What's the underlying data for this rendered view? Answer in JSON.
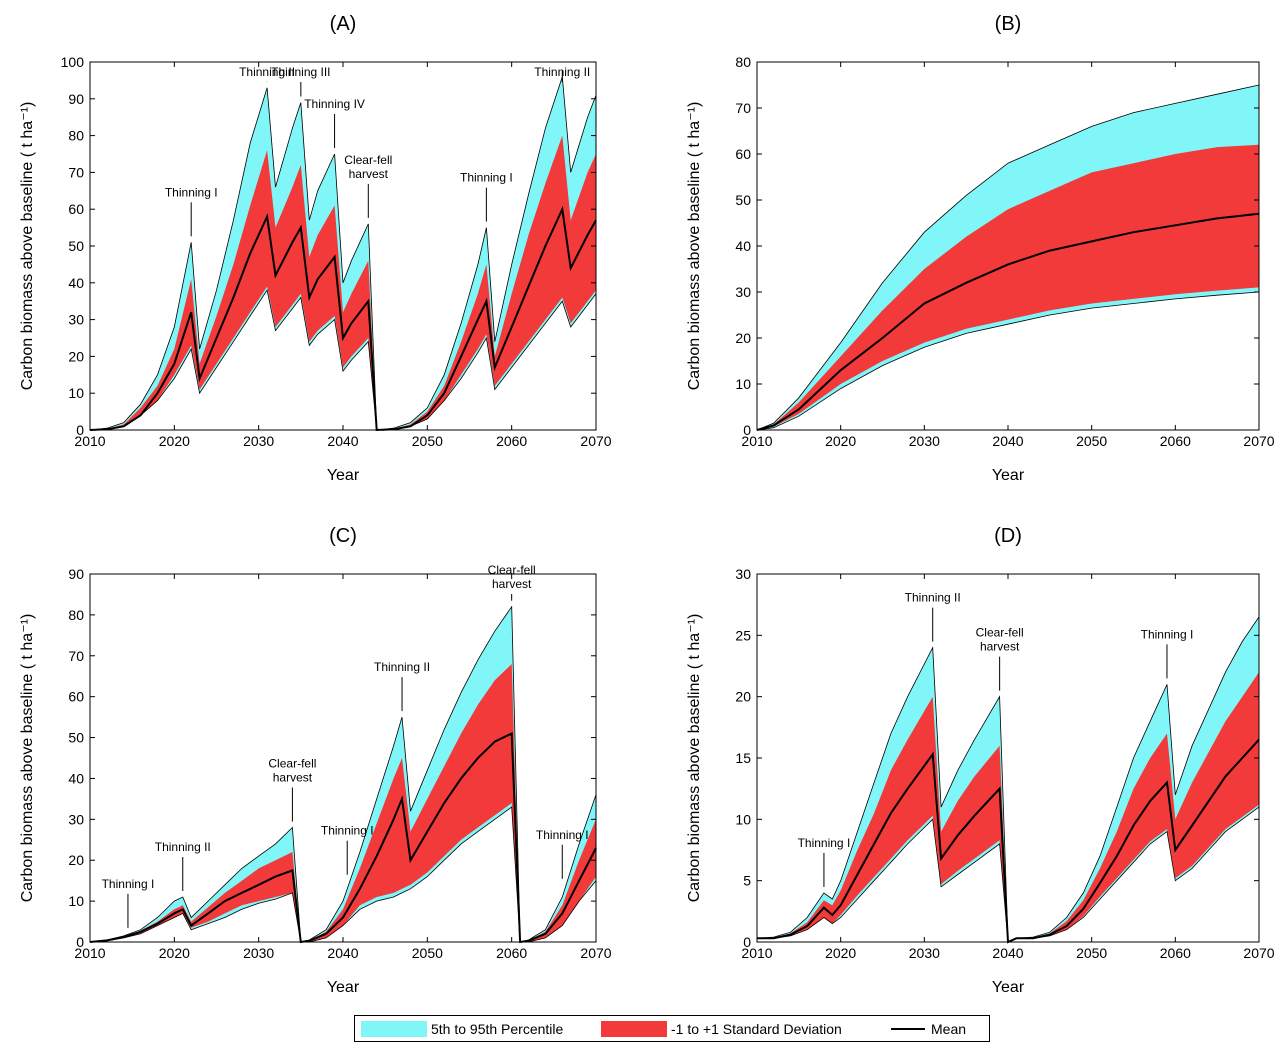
{
  "colors": {
    "percentile": "#80f6f8",
    "stddev": "#f23a3a",
    "mean": "#000000"
  },
  "legend": {
    "percentile_label": "5th to 95th Percentile",
    "stddev_label": "-1 to +1 Standard Deviation",
    "mean_label": "Mean"
  },
  "chart_data": [
    {
      "type": "area",
      "title": "(A)",
      "xlabel": "Year",
      "ylabel": "Carbon biomass above baseline ( t ha⁻¹)",
      "xlim": [
        2010,
        2070
      ],
      "ylim": [
        0,
        100
      ],
      "xticks": [
        2010,
        2020,
        2030,
        2040,
        2050,
        2060,
        2070
      ],
      "yticks": [
        0,
        10,
        20,
        30,
        40,
        50,
        60,
        70,
        80,
        90,
        100
      ],
      "x": [
        2010,
        2012,
        2014,
        2016,
        2018,
        2020,
        2022,
        2023,
        2025,
        2027,
        2029,
        2031,
        2032,
        2034,
        2035,
        2036,
        2037,
        2039,
        2040,
        2041,
        2043,
        2044,
        2046,
        2048,
        2050,
        2052,
        2054,
        2056,
        2057,
        2058,
        2060,
        2062,
        2064,
        2066,
        2067,
        2069,
        2070
      ],
      "series": [
        {
          "name": "5th to 95th Percentile",
          "lower": [
            0,
            0,
            1,
            4,
            8,
            14,
            22,
            10,
            17,
            24,
            31,
            38,
            27,
            33,
            36,
            23,
            26,
            30,
            16,
            19,
            24,
            0,
            0,
            1,
            3,
            8,
            14,
            21,
            25,
            11,
            17,
            23,
            29,
            35,
            28,
            34,
            37
          ],
          "upper": [
            0,
            0.5,
            2,
            7,
            15,
            28,
            51,
            22,
            38,
            57,
            78,
            93,
            66,
            82,
            89,
            57,
            65,
            75,
            40,
            46,
            56,
            0,
            0.5,
            2,
            6,
            15,
            29,
            45,
            55,
            24,
            45,
            64,
            82,
            96,
            70,
            85,
            91
          ]
        },
        {
          "name": "-1 to +1 Standard Deviation",
          "lower": [
            0,
            0,
            1,
            4,
            8,
            15,
            23,
            11,
            18,
            25,
            32,
            39,
            28,
            34,
            37,
            24,
            27,
            31,
            17,
            20,
            25,
            0,
            0,
            1,
            3,
            8,
            15,
            22,
            26,
            12,
            18,
            24,
            30,
            36,
            29,
            35,
            38
          ],
          "upper": [
            0,
            0.3,
            1.5,
            6,
            12,
            22,
            41,
            18,
            31,
            45,
            61,
            76,
            55,
            66,
            72,
            47,
            53,
            61,
            32,
            37,
            46,
            0,
            0.3,
            1.5,
            5,
            12,
            24,
            37,
            45,
            20,
            37,
            53,
            67,
            80,
            57,
            70,
            75
          ]
        },
        {
          "name": "Mean",
          "values": [
            0,
            0.2,
            1,
            4,
            10,
            18,
            32,
            14,
            25,
            36,
            48,
            58,
            42,
            51,
            55,
            36,
            41,
            47,
            25,
            29,
            35,
            0,
            0.2,
            1,
            4,
            10,
            20,
            30,
            35,
            17,
            28,
            39,
            50,
            60,
            44,
            53,
            57
          ]
        }
      ],
      "annotations": [
        {
          "label": "Thinning I",
          "x": 2022,
          "y": 51
        },
        {
          "label": "Thinning II",
          "x": 2031,
          "y": 93
        },
        {
          "label": "Thinning III",
          "x": 2035,
          "y": 89
        },
        {
          "label": "Thinning IV",
          "x": 2039,
          "y": 75
        },
        {
          "label": "Clear-fell harvest",
          "x": 2043,
          "y": 56
        },
        {
          "label": "Thinning I",
          "x": 2057,
          "y": 55
        },
        {
          "label": "Thinning II",
          "x": 2066,
          "y": 96
        }
      ]
    },
    {
      "type": "area",
      "title": "(B)",
      "xlabel": "Year",
      "ylabel": "Carbon biomass above baseline ( t ha⁻¹)",
      "xlim": [
        2010,
        2070
      ],
      "ylim": [
        0,
        80
      ],
      "xticks": [
        2010,
        2020,
        2030,
        2040,
        2050,
        2060,
        2070
      ],
      "yticks": [
        0,
        10,
        20,
        30,
        40,
        50,
        60,
        70,
        80
      ],
      "x": [
        2010,
        2012,
        2015,
        2020,
        2025,
        2030,
        2035,
        2040,
        2045,
        2050,
        2055,
        2060,
        2065,
        2070
      ],
      "series": [
        {
          "name": "5th to 95th Percentile",
          "lower": [
            0,
            0.5,
            3,
            9,
            14,
            18,
            21,
            23,
            25,
            26.5,
            27.5,
            28.5,
            29.3,
            30
          ],
          "upper": [
            0,
            1.5,
            7,
            19,
            32,
            43,
            51,
            58,
            62,
            66,
            69,
            71,
            73,
            75
          ]
        },
        {
          "name": "-1 to +1 Standard Deviation",
          "lower": [
            0,
            0.7,
            3.5,
            10,
            15,
            19,
            22,
            24,
            26,
            27.5,
            28.5,
            29.5,
            30.3,
            31
          ],
          "upper": [
            0,
            1.2,
            6,
            16,
            26,
            35,
            42,
            48,
            52,
            56,
            58,
            60,
            61.5,
            62
          ]
        },
        {
          "name": "Mean",
          "values": [
            0,
            1,
            4.5,
            13,
            20,
            27.5,
            32,
            36,
            39,
            41,
            43,
            44.5,
            46,
            47
          ]
        }
      ],
      "annotations": []
    },
    {
      "type": "area",
      "title": "(C)",
      "xlabel": "Year",
      "ylabel": "Carbon biomass above baseline ( t ha⁻¹)",
      "xlim": [
        2010,
        2070
      ],
      "ylim": [
        0,
        90
      ],
      "xticks": [
        2010,
        2020,
        2030,
        2040,
        2050,
        2060,
        2070
      ],
      "yticks": [
        0,
        10,
        20,
        30,
        40,
        50,
        60,
        70,
        80,
        90
      ],
      "x": [
        2010,
        2012,
        2014,
        2016,
        2018,
        2020,
        2021,
        2022,
        2024,
        2026,
        2028,
        2030,
        2032,
        2034,
        2035,
        2036,
        2038,
        2040,
        2042,
        2044,
        2046,
        2047,
        2048,
        2050,
        2052,
        2054,
        2056,
        2058,
        2060,
        2061,
        2062,
        2064,
        2066,
        2068,
        2070
      ],
      "series": [
        {
          "name": "5th to 95th Percentile",
          "lower": [
            0,
            0.3,
            1,
            2,
            4,
            6,
            7,
            3,
            4.5,
            6,
            8,
            9.5,
            10.5,
            12,
            0,
            0,
            1,
            4,
            8,
            10,
            11,
            12,
            13,
            16,
            20,
            24,
            27,
            30,
            33,
            0,
            0,
            1,
            4,
            10,
            15
          ],
          "upper": [
            0,
            0.5,
            1.5,
            3,
            6,
            10,
            11,
            6,
            10,
            14,
            18,
            21,
            24,
            28,
            0,
            0.5,
            3,
            10,
            22,
            35,
            48,
            55,
            32,
            42,
            52,
            61,
            69,
            76,
            82,
            0,
            0.5,
            3,
            11,
            24,
            36
          ]
        },
        {
          "name": "-1 to +1 Standard Deviation",
          "lower": [
            0,
            0.3,
            1,
            2,
            4,
            6,
            7,
            3.5,
            5,
            7,
            9,
            10,
            11,
            12,
            0,
            0,
            1,
            4,
            9,
            11,
            12,
            13,
            14,
            17,
            21,
            25,
            28,
            31,
            34,
            0,
            0,
            1,
            4,
            10,
            16
          ],
          "upper": [
            0,
            0.5,
            1.3,
            2.8,
            5,
            8,
            9,
            5,
            8.5,
            12,
            15,
            18,
            20,
            22,
            0,
            0.4,
            2.5,
            8,
            18,
            29,
            40,
            45,
            27,
            35,
            43,
            51,
            58,
            64,
            68,
            0,
            0.4,
            2.5,
            9,
            20,
            30
          ]
        },
        {
          "name": "Mean",
          "values": [
            0,
            0.4,
            1.2,
            2.5,
            4.5,
            7,
            8,
            4,
            7,
            10,
            12,
            14,
            16,
            17.5,
            0,
            0.3,
            2,
            6,
            13,
            21,
            30,
            35,
            20,
            27,
            34,
            40,
            45,
            49,
            51,
            0,
            0.3,
            2,
            7,
            15,
            23
          ]
        }
      ],
      "annotations": [
        {
          "label": "Thinning I",
          "x": 2014.5,
          "y": 2
        },
        {
          "label": "Thinning II",
          "x": 2021,
          "y": 11
        },
        {
          "label": "Clear-fell harvest",
          "x": 2034,
          "y": 28
        },
        {
          "label": "Thinning I",
          "x": 2040.5,
          "y": 15
        },
        {
          "label": "Thinning II",
          "x": 2047,
          "y": 55
        },
        {
          "label": "Clear-fell harvest",
          "x": 2060,
          "y": 82
        },
        {
          "label": "Thinning I",
          "x": 2066,
          "y": 14
        }
      ]
    },
    {
      "type": "area",
      "title": "(D)",
      "xlabel": "Year",
      "ylabel": "Carbon biomass above baseline ( t ha⁻¹)",
      "xlim": [
        2010,
        2070
      ],
      "ylim": [
        0,
        30
      ],
      "xticks": [
        2010,
        2020,
        2030,
        2040,
        2050,
        2060,
        2070
      ],
      "yticks": [
        0,
        5,
        10,
        15,
        20,
        25,
        30
      ],
      "x": [
        2010,
        2012,
        2014,
        2016,
        2018,
        2019,
        2020,
        2022,
        2024,
        2026,
        2028,
        2031,
        2032,
        2034,
        2036,
        2039,
        2040,
        2041,
        2043,
        2045,
        2047,
        2049,
        2051,
        2053,
        2055,
        2057,
        2059,
        2060,
        2062,
        2064,
        2066,
        2068,
        2070
      ],
      "series": [
        {
          "name": "5th to 95th Percentile",
          "lower": [
            0.3,
            0.3,
            0.5,
            1,
            2,
            1.5,
            2,
            3.5,
            5,
            6.5,
            8,
            10,
            4.5,
            5.5,
            6.5,
            8,
            0,
            0.3,
            0.3,
            0.5,
            1,
            2,
            3.5,
            5,
            6.5,
            8,
            9,
            5,
            6,
            7.5,
            9,
            10,
            11
          ],
          "upper": [
            0.3,
            0.4,
            0.8,
            2,
            4,
            3.5,
            5,
            9,
            13,
            17,
            20,
            24,
            11,
            14,
            16.5,
            20,
            0,
            0.3,
            0.4,
            0.8,
            2,
            4,
            7,
            11,
            15,
            18,
            21,
            12,
            16,
            19,
            22,
            24.5,
            26.5
          ]
        },
        {
          "name": "-1 to +1 Standard Deviation",
          "lower": [
            0.3,
            0.3,
            0.5,
            1,
            2,
            1.5,
            2.2,
            3.8,
            5.3,
            6.8,
            8.3,
            10.3,
            4.7,
            5.8,
            6.8,
            8.3,
            0,
            0.3,
            0.3,
            0.5,
            1,
            2.1,
            3.7,
            5.2,
            6.7,
            8.2,
            9.2,
            5.2,
            6.2,
            7.7,
            9.2,
            10.2,
            11.2
          ],
          "upper": [
            0.3,
            0.35,
            0.7,
            1.6,
            3.4,
            3,
            4.2,
            7.5,
            10.5,
            14,
            16.5,
            20,
            9,
            11.5,
            13.5,
            16,
            0,
            0.3,
            0.35,
            0.7,
            1.7,
            3.4,
            6,
            9,
            12.5,
            15,
            17,
            10,
            13,
            15.5,
            18,
            20,
            22
          ]
        },
        {
          "name": "Mean",
          "values": [
            0.3,
            0.3,
            0.6,
            1.3,
            2.8,
            2.2,
            3,
            5.5,
            8,
            10.5,
            12.5,
            15.3,
            6.8,
            8.7,
            10.3,
            12.5,
            0,
            0.3,
            0.3,
            0.6,
            1.3,
            2.7,
            4.8,
            7,
            9.5,
            11.5,
            13,
            7.5,
            9.5,
            11.5,
            13.5,
            15,
            16.5
          ]
        }
      ],
      "annotations": [
        {
          "label": "Thinning I",
          "x": 2018,
          "y": 4
        },
        {
          "label": "Thinning II",
          "x": 2031,
          "y": 24
        },
        {
          "label": "Clear-fell harvest",
          "x": 2039,
          "y": 20
        },
        {
          "label": "Thinning I",
          "x": 2059,
          "y": 21
        }
      ]
    }
  ]
}
